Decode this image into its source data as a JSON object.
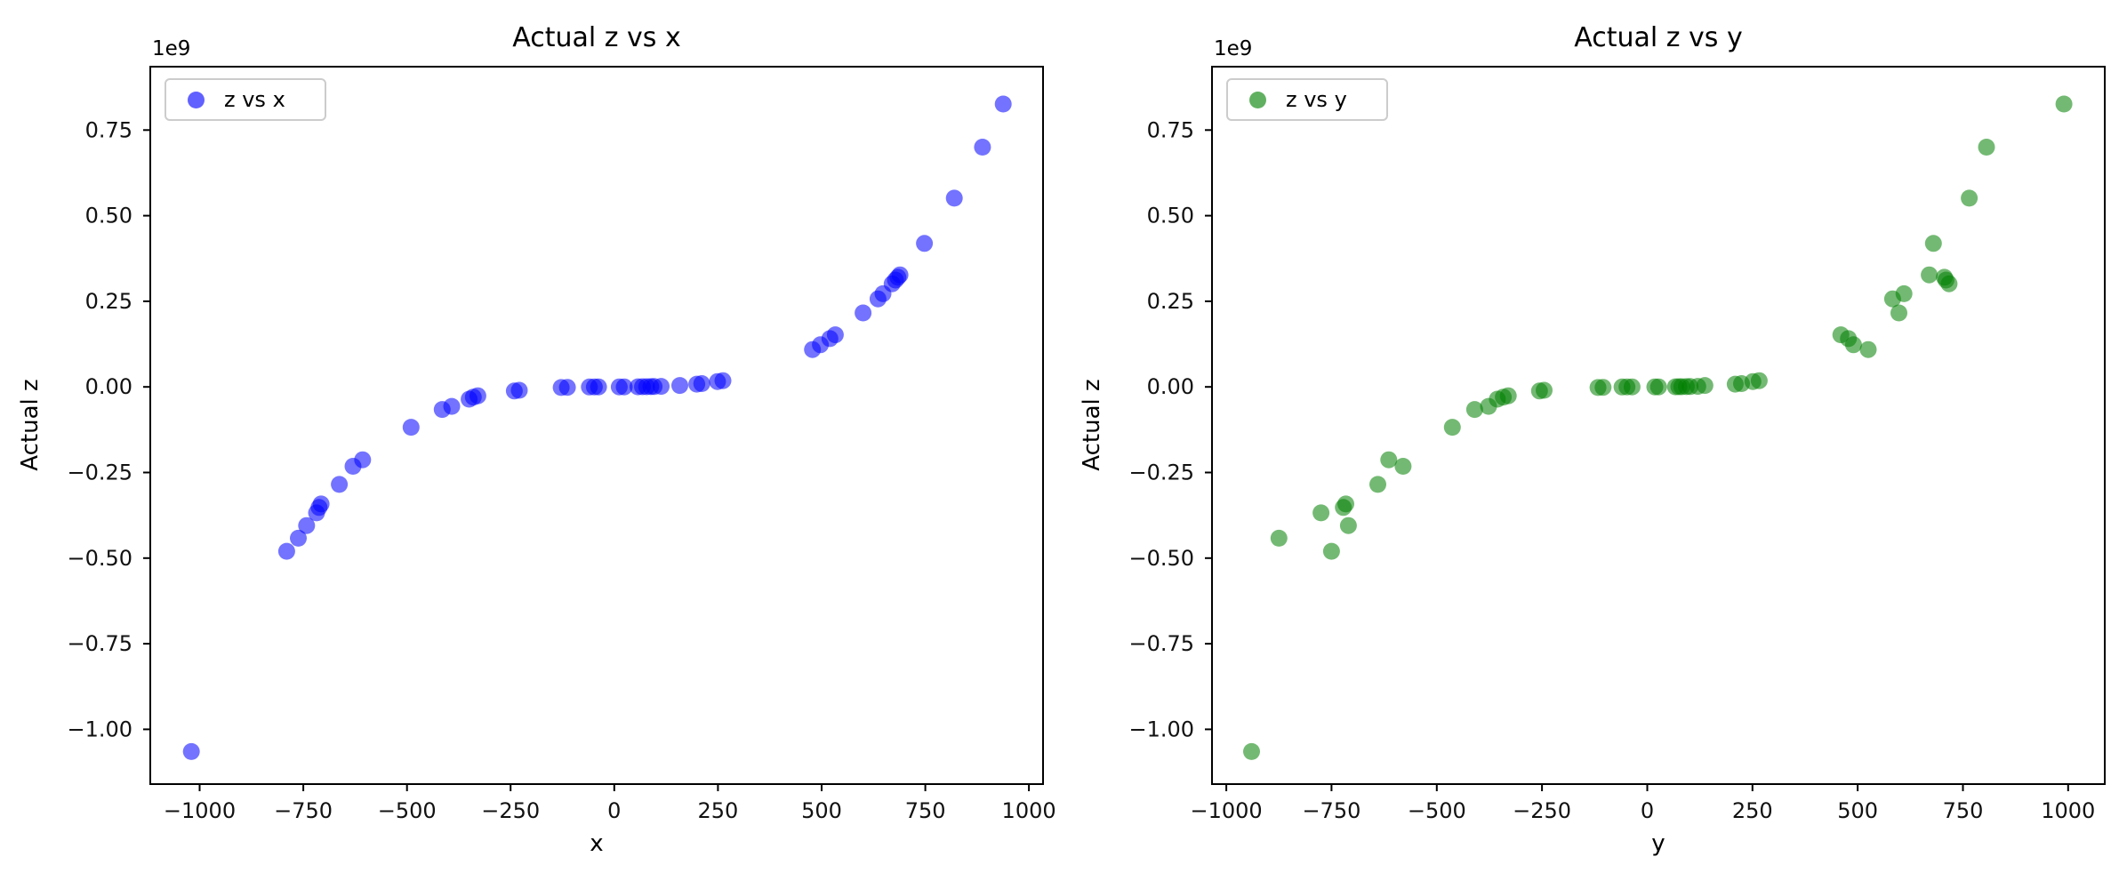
{
  "figure": {
    "background": "#ffffff",
    "description": "Two side-by-side scatter subplots of actual z values against x and against y"
  },
  "chart_data": {
    "type": "scatter",
    "z_unit": "1e9",
    "grid": false,
    "styles": {
      "marker_alpha": 0.55,
      "marker_radius_px": 9.5,
      "axis_color": "#000000",
      "text_color": "#111111",
      "legend_border_color": "#cccccc"
    },
    "xticks": [
      -1000,
      -750,
      -500,
      -250,
      0,
      250,
      500,
      750,
      1000
    ],
    "xtick_labels": [
      "−1000",
      "−750",
      "−500",
      "−250",
      "0",
      "250",
      "500",
      "750",
      "1000"
    ],
    "yticks_e9": [
      0.75,
      0.5,
      0.25,
      0.0,
      -0.25,
      -0.5,
      -0.75,
      -1.0
    ],
    "ytick_labels": [
      "0.75",
      "0.50",
      "0.25",
      "0.00",
      "−0.25",
      "−0.50",
      "−0.75",
      "−1.00"
    ],
    "subplots": [
      {
        "title": "Actual z vs x",
        "xlabel": "x",
        "ylabel": "Actual z",
        "legend_label": "z vs x",
        "legend_loc": "upper left",
        "offset_text": "1e9",
        "marker_color": "#0000ff",
        "h_axis": "x",
        "h_index": 0,
        "xlim": [
          -1119,
          1034
        ],
        "ylim_e9": [
          -1.16,
          0.935
        ]
      },
      {
        "title": "Actual z vs y",
        "xlabel": "y",
        "ylabel": "Actual z",
        "legend_label": "z vs y",
        "legend_loc": "upper left",
        "offset_text": "1e9",
        "marker_color": "#008000",
        "h_axis": "y",
        "h_index": 1,
        "xlim": [
          -1034,
          1087
        ],
        "ylim_e9": [
          -1.16,
          0.935
        ]
      }
    ],
    "samples_xyz_e9": [
      [
        -1020,
        -940,
        -1.065
      ],
      [
        -790,
        -750,
        -0.48
      ],
      [
        -762,
        -875,
        -0.442
      ],
      [
        -742,
        -710,
        -0.405
      ],
      [
        -718,
        -775,
        -0.368
      ],
      [
        -712,
        -722,
        -0.352
      ],
      [
        -707,
        -716,
        -0.342
      ],
      [
        -663,
        -640,
        -0.285
      ],
      [
        -630,
        -580,
        -0.232
      ],
      [
        -607,
        -614,
        -0.213
      ],
      [
        -490,
        -463,
        -0.118
      ],
      [
        -415,
        -410,
        -0.066
      ],
      [
        -392,
        -377,
        -0.057
      ],
      [
        -350,
        -356,
        -0.036
      ],
      [
        -340,
        -342,
        -0.03
      ],
      [
        -329,
        -330,
        -0.026
      ],
      [
        -241,
        -256,
        -0.012
      ],
      [
        -229,
        -245,
        -0.01
      ],
      [
        -128,
        -117,
        -0.002
      ],
      [
        -113,
        -105,
        -0.0015
      ],
      [
        -60,
        -60,
        -0.0004
      ],
      [
        -48,
        -48,
        -0.0002
      ],
      [
        -38,
        -36,
        -0.0001
      ],
      [
        12,
        18,
        0.0
      ],
      [
        24,
        27,
        0.0
      ],
      [
        57,
        67,
        0.0002
      ],
      [
        68,
        75,
        0.0004
      ],
      [
        78,
        82,
        0.0005
      ],
      [
        88,
        93,
        0.0007
      ],
      [
        96,
        102,
        0.0009
      ],
      [
        113,
        120,
        0.0015
      ],
      [
        158,
        137,
        0.004
      ],
      [
        199,
        209,
        0.008
      ],
      [
        211,
        224,
        0.0095
      ],
      [
        249,
        251,
        0.0155
      ],
      [
        262,
        266,
        0.018
      ],
      [
        478,
        525,
        0.109
      ],
      [
        497,
        490,
        0.123
      ],
      [
        520,
        478,
        0.141
      ],
      [
        533,
        460,
        0.152
      ],
      [
        600,
        598,
        0.216
      ],
      [
        636,
        583,
        0.257
      ],
      [
        648,
        610,
        0.272
      ],
      [
        670,
        717,
        0.301
      ],
      [
        678,
        710,
        0.312
      ],
      [
        684,
        706,
        0.32
      ],
      [
        689,
        670,
        0.327
      ],
      [
        748,
        680,
        0.419
      ],
      [
        820,
        765,
        0.551
      ],
      [
        888,
        806,
        0.7
      ],
      [
        938,
        990,
        0.826
      ]
    ]
  }
}
